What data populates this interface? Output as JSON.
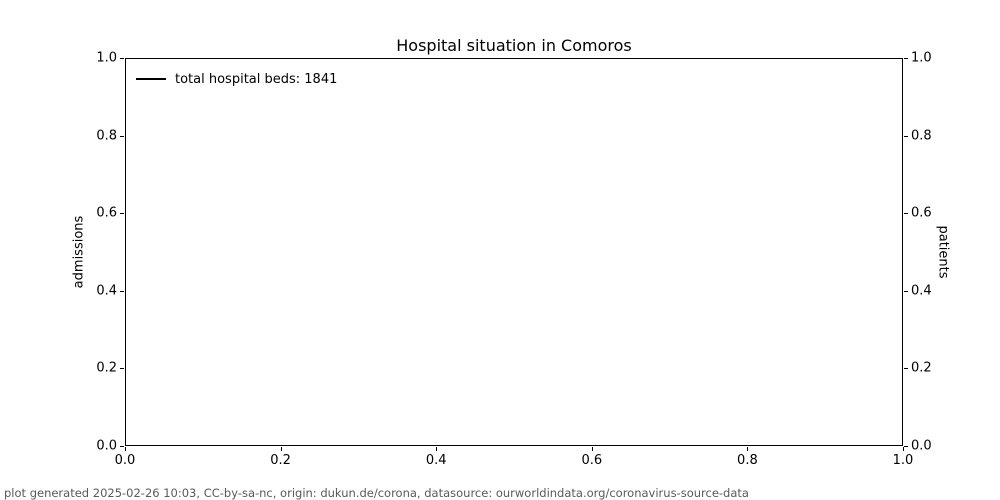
{
  "title": "Hospital situation in Comoros",
  "footer": "plot generated 2025-02-26 10:03, CC-by-sa-nc, origin: dukun.de/corona, datasource: ourworldindata.org/coronavirus-source-data",
  "legend": {
    "position": "upper left",
    "items": [
      {
        "label": "total hospital beds: 1841",
        "color": "#000000",
        "marker": "line"
      }
    ]
  },
  "axes": {
    "y_left_label": "admissions",
    "y_right_label": "patients",
    "x_tick_labels": [
      "0.0",
      "0.2",
      "0.4",
      "0.6",
      "0.8",
      "1.0"
    ],
    "y_left_tick_labels": [
      "0.0",
      "0.2",
      "0.4",
      "0.6",
      "0.8",
      "1.0"
    ],
    "y_right_tick_labels": [
      "0.0",
      "0.2",
      "0.4",
      "0.6",
      "0.8",
      "1.0"
    ]
  },
  "colors": {
    "axis_line": "#000000",
    "title_text": "#000000",
    "footer_text": "#595959",
    "series_total_hospital_beds": "#000000"
  },
  "chart_data": {
    "type": "line",
    "title": "Hospital situation in Comoros",
    "xlabel": "",
    "ylabel": "admissions",
    "ylabel_right": "patients",
    "xlim": [
      0.0,
      1.0
    ],
    "ylim": [
      0.0,
      1.0
    ],
    "ylim_right": [
      0.0,
      1.0
    ],
    "x_ticks": [
      0.0,
      0.2,
      0.4,
      0.6,
      0.8,
      1.0
    ],
    "y_ticks": [
      0.0,
      0.2,
      0.4,
      0.6,
      0.8,
      1.0
    ],
    "y_ticks_right": [
      0.0,
      0.2,
      0.4,
      0.6,
      0.8,
      1.0
    ],
    "grid": false,
    "legend_position": "upper left",
    "series": [
      {
        "name": "total hospital beds: 1841",
        "color": "#000000",
        "x": [],
        "y": []
      }
    ],
    "note": "plot area is empty; series has no plotted points"
  }
}
